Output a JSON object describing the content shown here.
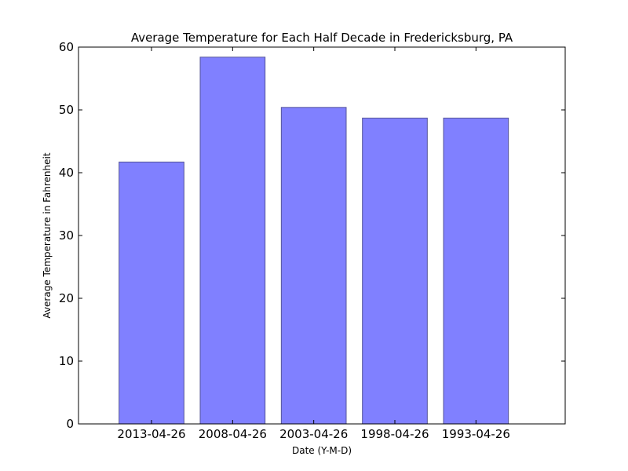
{
  "chart_data": {
    "type": "bar",
    "title": "Average Temperature for Each Half Decade in Fredericksburg, PA",
    "xlabel": "Date (Y-M-D)",
    "ylabel": "Average Temperature in Fahrenheit",
    "categories": [
      "2013-04-26",
      "2008-04-26",
      "2003-04-26",
      "1998-04-26",
      "1993-04-26"
    ],
    "values": [
      41.7,
      58.4,
      50.4,
      48.7,
      48.7
    ],
    "ylim": [
      0,
      60
    ],
    "yticks": [
      0,
      10,
      20,
      30,
      40,
      50,
      60
    ],
    "ytick_labels": [
      "0",
      "10",
      "20",
      "30",
      "40",
      "50",
      "60"
    ],
    "grid": false,
    "bar_color": "#8080ff",
    "bar_edge_color": "#555599"
  }
}
